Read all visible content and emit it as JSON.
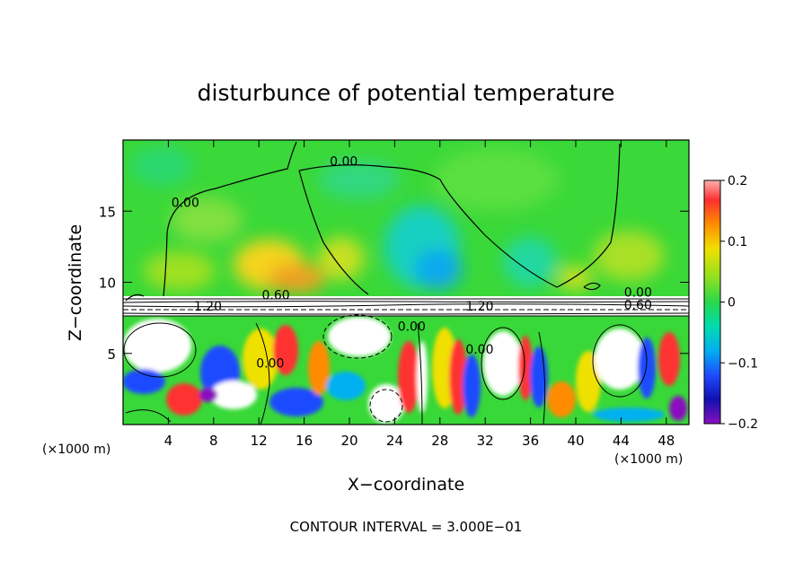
{
  "chart_data": {
    "type": "heatmap",
    "title": "disturbunce of potential temperature",
    "xlabel": "X−coordinate",
    "ylabel": "Z−coordinate",
    "x_unit_left": "(×1000 m)",
    "x_unit_right": "(×1000 m)",
    "footer": "CONTOUR INTERVAL = 3.000E−01",
    "xlim": [
      0,
      50
    ],
    "ylim": [
      0,
      20
    ],
    "x_ticks": [
      4,
      8,
      12,
      16,
      20,
      24,
      28,
      32,
      36,
      40,
      44,
      48
    ],
    "y_ticks": [
      5,
      10,
      15
    ],
    "colorbar": {
      "vmin": -0.2,
      "vmax": 0.2,
      "ticks": [
        0.2,
        0.1,
        0,
        -0.1,
        -0.2
      ],
      "tick_labels": [
        "0.2",
        "0.1",
        "0",
        "−0.1",
        "−0.2"
      ]
    },
    "contour_labels": [
      {
        "text": "0.00",
        "x": 19.5,
        "y": 18.2
      },
      {
        "text": "0.00",
        "x": 5.5,
        "y": 15.3
      },
      {
        "text": "0.60",
        "x": 13.5,
        "y": 8.8
      },
      {
        "text": "1.20",
        "x": 7.5,
        "y": 8.0
      },
      {
        "text": "1.20",
        "x": 31.5,
        "y": 8.0
      },
      {
        "text": "0.00",
        "x": 45.5,
        "y": 9.0
      },
      {
        "text": "0.60",
        "x": 45.5,
        "y": 8.1
      },
      {
        "text": "0.00",
        "x": 25.5,
        "y": 6.6
      },
      {
        "text": "0.00",
        "x": 31.5,
        "y": 5.0
      },
      {
        "text": "0.00",
        "x": 13.0,
        "y": 4.0
      }
    ]
  }
}
